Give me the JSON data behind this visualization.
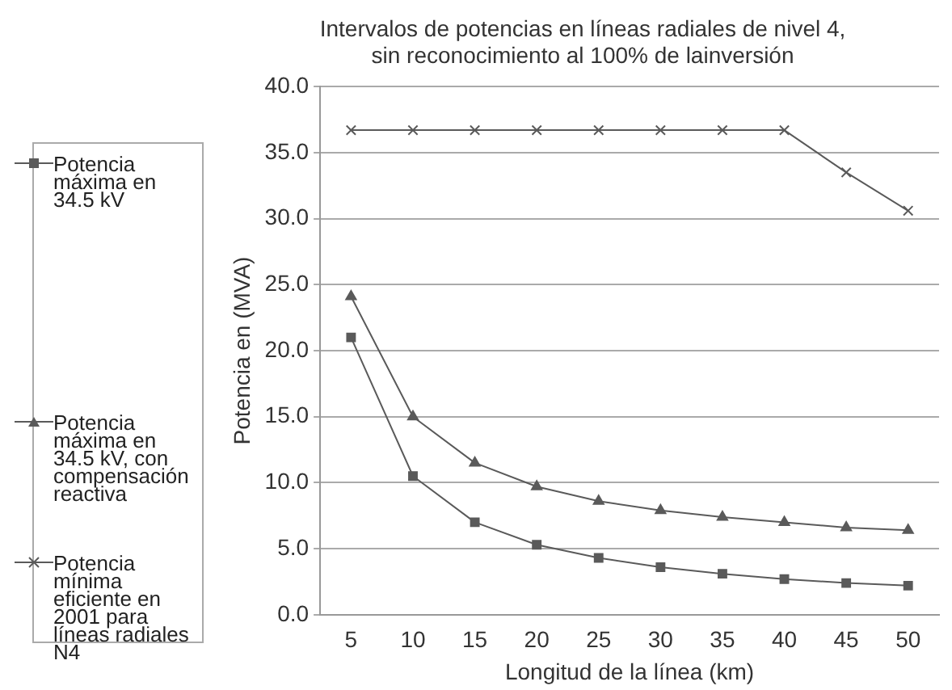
{
  "chart_data": {
    "type": "line",
    "title": "Intervalos de potencias en líneas radiales de nivel 4,\nsin reconocimiento al 100% de lainversión",
    "xlabel": "Longitud de la línea (km)",
    "ylabel": "Potencia en (MVA)",
    "categories": [
      "5",
      "10",
      "15",
      "20",
      "25",
      "30",
      "35",
      "40",
      "45",
      "50"
    ],
    "series": [
      {
        "name": "Potencia máxima en 34.5 kV",
        "color": "#5a5a5a",
        "marker": "square",
        "values": [
          21.0,
          10.5,
          7.0,
          5.3,
          4.3,
          3.6,
          3.1,
          2.7,
          2.4,
          2.2
        ]
      },
      {
        "name": "Potencia máxima en 34.5 kV, con compensación reactiva",
        "color": "#5a5a5a",
        "marker": "triangle",
        "values": [
          24.1,
          15.0,
          11.5,
          9.7,
          8.6,
          7.9,
          7.4,
          7.0,
          6.6,
          6.4
        ]
      },
      {
        "name": "Potencia mínima eficiente en 2001 para líneas radiales N4",
        "color": "#5a5a5a",
        "marker": "cross",
        "values": [
          36.7,
          36.7,
          36.7,
          36.7,
          36.7,
          36.7,
          36.7,
          36.7,
          33.5,
          30.6
        ]
      }
    ],
    "ylim": [
      0,
      40
    ],
    "yticks": [
      {
        "value": 0,
        "label": "0.0"
      },
      {
        "value": 5,
        "label": "5.0"
      },
      {
        "value": 10,
        "label": "10.0"
      },
      {
        "value": 15,
        "label": "15.0"
      },
      {
        "value": 20,
        "label": "20.0"
      },
      {
        "value": 25,
        "label": "25.0"
      },
      {
        "value": 30,
        "label": "30.0"
      },
      {
        "value": 35,
        "label": "35.0"
      },
      {
        "value": 40,
        "label": "40.0"
      }
    ],
    "grid": "y",
    "legend": "left"
  }
}
